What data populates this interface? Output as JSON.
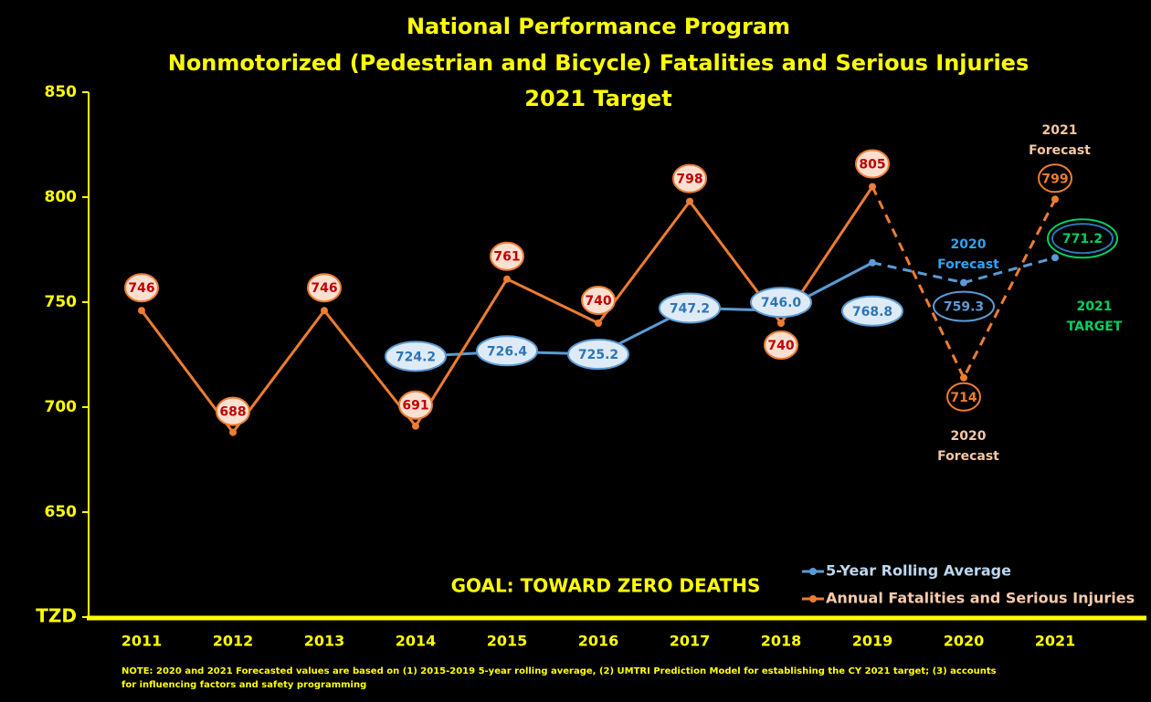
{
  "chart_data": {
    "type": "line",
    "title": [
      "National Performance Program",
      "Nonmotorized (Pedestrian and Bicycle) Fatalities and Serious Injuries",
      "2021 Target"
    ],
    "categories": [
      "2011",
      "2012",
      "2013",
      "2014",
      "2015",
      "2016",
      "2017",
      "2018",
      "2019",
      "2020",
      "2021"
    ],
    "series": [
      {
        "name": "5-Year Rolling Average",
        "color": "#5b9bd5",
        "values": [
          null,
          null,
          null,
          724.2,
          726.4,
          725.2,
          747.2,
          746.0,
          768.8,
          759.3,
          771.2
        ],
        "value_labels": [
          null,
          null,
          null,
          "724.2",
          "726.4",
          "725.2",
          "747.2",
          "746.0",
          "768.8",
          "759.3",
          "771.2"
        ]
      },
      {
        "name": "Annual Fatalities and Serious Injuries",
        "color": "#ed7d31",
        "values": [
          746,
          688,
          746,
          691,
          761,
          740,
          798,
          740,
          805,
          714,
          799
        ]
      }
    ],
    "dashed_from": 8,
    "target_color": "#00d060",
    "ylim": [
      600,
      850
    ],
    "yticks": [
      {
        "value": 600,
        "label": "TZD"
      },
      650,
      700,
      750,
      800,
      850
    ],
    "legend": "bottom-right",
    "annotations": [
      {
        "lines": [
          "2020",
          "Forecast"
        ],
        "color": "#2ea3f2"
      },
      {
        "lines": [
          "2021",
          "Forecast"
        ],
        "color": "#f4c7a0"
      },
      {
        "lines": [
          "2020",
          "Forecast"
        ],
        "color": "#f4c7a0"
      },
      {
        "lines": [
          "2021",
          "TARGET"
        ],
        "color": "#00d060"
      },
      {
        "lines": [
          "GOAL:  TOWARD ZERO DEATHS"
        ],
        "color": "#ffff00"
      }
    ],
    "note": [
      "NOTE:  2020 and 2021 Forecasted values are based on (1) 2015-2019  5-year rolling average, (2) UMTRI Prediction Model for establishing the CY 2021 target; (3) accounts",
      "for influencing factors and safety programming"
    ]
  }
}
